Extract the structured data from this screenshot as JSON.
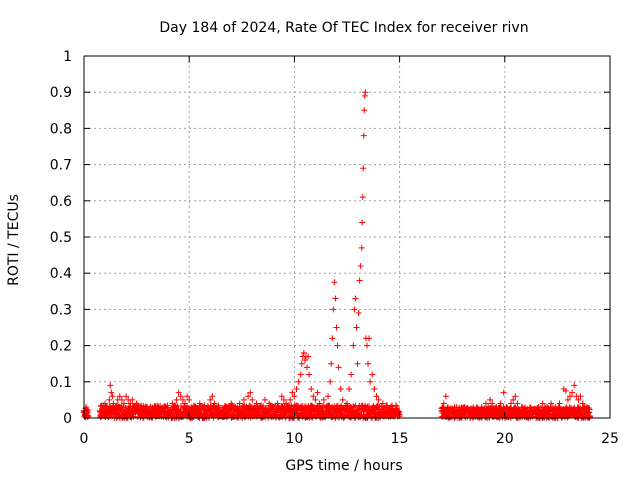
{
  "chart_data": {
    "type": "scatter",
    "title": "Day 184 of 2024, Rate Of TEC Index for receiver rivn",
    "xlabel": "GPS time / hours",
    "ylabel": "ROTI / TECUs",
    "xlim": [
      0,
      25
    ],
    "ylim": [
      0,
      1
    ],
    "x_ticks": [
      "0",
      "5",
      "10",
      "15",
      "20",
      "25"
    ],
    "y_ticks": [
      "0",
      "0.1",
      "0.2",
      "0.3",
      "0.4",
      "0.5",
      "0.6",
      "0.7",
      "0.8",
      "0.9",
      "1"
    ],
    "grid": true,
    "marker": "+",
    "color": "#ff0000",
    "series": [
      {
        "points": [
          [
            0.0,
            0.02
          ],
          [
            0.05,
            0.01
          ],
          [
            0.1,
            0.03
          ],
          [
            0.15,
            0.015
          ],
          [
            0.8,
            0.01
          ],
          [
            0.9,
            0.02
          ],
          [
            1.0,
            0.04
          ],
          [
            1.1,
            0.03
          ],
          [
            1.2,
            0.05
          ],
          [
            1.25,
            0.09
          ],
          [
            1.3,
            0.07
          ],
          [
            1.35,
            0.06
          ],
          [
            1.4,
            0.04
          ],
          [
            1.5,
            0.03
          ],
          [
            1.6,
            0.05
          ],
          [
            1.7,
            0.06
          ],
          [
            1.8,
            0.05
          ],
          [
            1.9,
            0.04
          ],
          [
            2.0,
            0.06
          ],
          [
            2.1,
            0.05
          ],
          [
            2.2,
            0.04
          ],
          [
            2.3,
            0.05
          ],
          [
            2.4,
            0.03
          ],
          [
            2.5,
            0.04
          ],
          [
            2.6,
            0.03
          ],
          [
            2.8,
            0.02
          ],
          [
            3.0,
            0.03
          ],
          [
            3.2,
            0.02
          ],
          [
            3.4,
            0.03
          ],
          [
            3.6,
            0.02
          ],
          [
            3.8,
            0.03
          ],
          [
            4.0,
            0.02
          ],
          [
            4.2,
            0.04
          ],
          [
            4.4,
            0.05
          ],
          [
            4.5,
            0.07
          ],
          [
            4.6,
            0.06
          ],
          [
            4.7,
            0.05
          ],
          [
            4.8,
            0.04
          ],
          [
            4.9,
            0.06
          ],
          [
            5.0,
            0.05
          ],
          [
            5.1,
            0.03
          ],
          [
            5.3,
            0.03
          ],
          [
            5.5,
            0.04
          ],
          [
            5.7,
            0.03
          ],
          [
            5.9,
            0.02
          ],
          [
            6.0,
            0.05
          ],
          [
            6.1,
            0.06
          ],
          [
            6.2,
            0.04
          ],
          [
            6.4,
            0.03
          ],
          [
            6.6,
            0.02
          ],
          [
            6.8,
            0.03
          ],
          [
            7.0,
            0.04
          ],
          [
            7.2,
            0.03
          ],
          [
            7.4,
            0.04
          ],
          [
            7.6,
            0.05
          ],
          [
            7.8,
            0.06
          ],
          [
            7.9,
            0.07
          ],
          [
            8.0,
            0.05
          ],
          [
            8.2,
            0.04
          ],
          [
            8.4,
            0.03
          ],
          [
            8.6,
            0.05
          ],
          [
            8.8,
            0.04
          ],
          [
            9.0,
            0.03
          ],
          [
            9.2,
            0.04
          ],
          [
            9.4,
            0.06
          ],
          [
            9.5,
            0.05
          ],
          [
            9.6,
            0.04
          ],
          [
            9.8,
            0.05
          ],
          [
            9.9,
            0.07
          ],
          [
            10.0,
            0.06
          ],
          [
            10.1,
            0.08
          ],
          [
            10.2,
            0.1
          ],
          [
            10.3,
            0.12
          ],
          [
            10.35,
            0.15
          ],
          [
            10.4,
            0.17
          ],
          [
            10.45,
            0.18
          ],
          [
            10.5,
            0.16
          ],
          [
            10.55,
            0.17
          ],
          [
            10.6,
            0.14
          ],
          [
            10.65,
            0.17
          ],
          [
            10.7,
            0.12
          ],
          [
            10.8,
            0.08
          ],
          [
            10.9,
            0.06
          ],
          [
            11.0,
            0.05
          ],
          [
            11.1,
            0.07
          ],
          [
            11.2,
            0.04
          ],
          [
            11.4,
            0.05
          ],
          [
            11.6,
            0.06
          ],
          [
            11.7,
            0.1
          ],
          [
            11.75,
            0.15
          ],
          [
            11.8,
            0.22
          ],
          [
            11.85,
            0.3
          ],
          [
            11.9,
            0.375
          ],
          [
            11.95,
            0.33
          ],
          [
            12.0,
            0.25
          ],
          [
            12.05,
            0.2
          ],
          [
            12.1,
            0.14
          ],
          [
            12.2,
            0.08
          ],
          [
            12.3,
            0.05
          ],
          [
            12.5,
            0.04
          ],
          [
            12.6,
            0.08
          ],
          [
            12.7,
            0.12
          ],
          [
            12.8,
            0.2
          ],
          [
            12.85,
            0.3
          ],
          [
            12.9,
            0.33
          ],
          [
            12.95,
            0.25
          ],
          [
            13.0,
            0.15
          ],
          [
            13.05,
            0.29
          ],
          [
            13.1,
            0.38
          ],
          [
            13.15,
            0.42
          ],
          [
            13.2,
            0.47
          ],
          [
            13.22,
            0.54
          ],
          [
            13.25,
            0.61
          ],
          [
            13.27,
            0.69
          ],
          [
            13.3,
            0.78
          ],
          [
            13.32,
            0.85
          ],
          [
            13.35,
            0.89
          ],
          [
            13.37,
            0.9
          ],
          [
            13.4,
            0.22
          ],
          [
            13.45,
            0.2
          ],
          [
            13.5,
            0.15
          ],
          [
            13.55,
            0.22
          ],
          [
            13.6,
            0.1
          ],
          [
            13.7,
            0.12
          ],
          [
            13.8,
            0.08
          ],
          [
            13.9,
            0.06
          ],
          [
            14.0,
            0.05
          ],
          [
            14.2,
            0.04
          ],
          [
            14.4,
            0.03
          ],
          [
            14.6,
            0.02
          ],
          [
            14.8,
            0.01
          ],
          [
            17.0,
            0.02
          ],
          [
            17.1,
            0.04
          ],
          [
            17.2,
            0.06
          ],
          [
            17.3,
            0.03
          ],
          [
            17.5,
            0.02
          ],
          [
            17.7,
            0.03
          ],
          [
            17.9,
            0.02
          ],
          [
            18.1,
            0.03
          ],
          [
            18.3,
            0.02
          ],
          [
            18.5,
            0.03
          ],
          [
            18.7,
            0.02
          ],
          [
            18.9,
            0.03
          ],
          [
            19.1,
            0.04
          ],
          [
            19.3,
            0.05
          ],
          [
            19.4,
            0.04
          ],
          [
            19.6,
            0.03
          ],
          [
            19.8,
            0.04
          ],
          [
            19.95,
            0.07
          ],
          [
            20.1,
            0.03
          ],
          [
            20.3,
            0.04
          ],
          [
            20.4,
            0.05
          ],
          [
            20.5,
            0.06
          ],
          [
            20.6,
            0.04
          ],
          [
            20.8,
            0.03
          ],
          [
            21.0,
            0.02
          ],
          [
            21.2,
            0.03
          ],
          [
            21.4,
            0.02
          ],
          [
            21.6,
            0.03
          ],
          [
            21.8,
            0.04
          ],
          [
            22.0,
            0.03
          ],
          [
            22.2,
            0.04
          ],
          [
            22.4,
            0.03
          ],
          [
            22.6,
            0.04
          ],
          [
            22.8,
            0.08
          ],
          [
            22.9,
            0.075
          ],
          [
            23.0,
            0.05
          ],
          [
            23.1,
            0.06
          ],
          [
            23.2,
            0.07
          ],
          [
            23.3,
            0.09
          ],
          [
            23.4,
            0.06
          ],
          [
            23.5,
            0.05
          ],
          [
            23.6,
            0.06
          ],
          [
            23.7,
            0.04
          ],
          [
            23.8,
            0.03
          ],
          [
            23.9,
            0.02
          ],
          [
            24.0,
            0.015
          ]
        ]
      }
    ],
    "background_bands": [
      {
        "x_start": 0.0,
        "x_end": 0.2,
        "max": 0.03
      },
      {
        "x_start": 0.75,
        "x_end": 15.0,
        "max": 0.035
      },
      {
        "x_start": 17.0,
        "x_end": 24.05,
        "max": 0.03
      }
    ]
  }
}
